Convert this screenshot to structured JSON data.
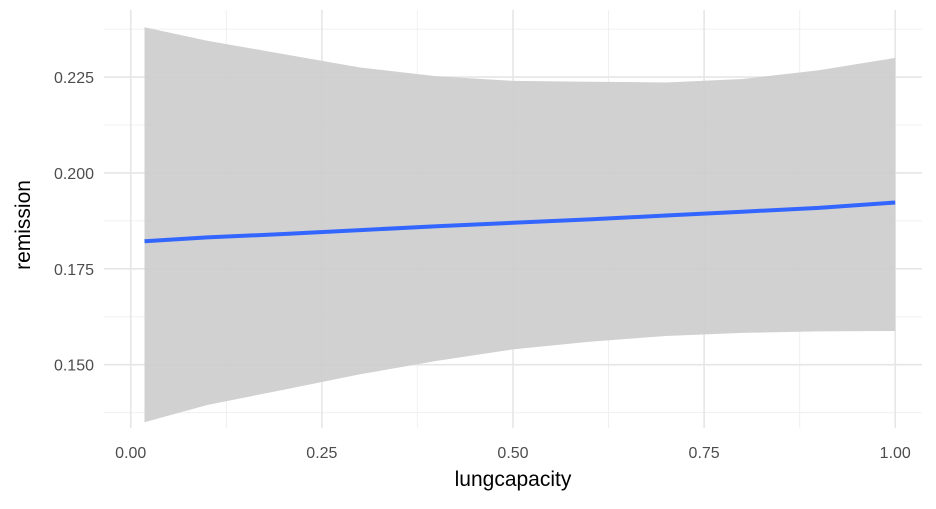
{
  "chart_data": {
    "type": "line",
    "xlabel": "lungcapacity",
    "ylabel": "remission",
    "xlim": [
      -0.035,
      1.035
    ],
    "ylim": [
      0.1335,
      0.2425
    ],
    "x_ticks": [
      0.0,
      0.25,
      0.5,
      0.75,
      1.0
    ],
    "x_tick_labels": [
      "0.00",
      "0.25",
      "0.50",
      "0.75",
      "1.00"
    ],
    "y_ticks": [
      0.15,
      0.175,
      0.2,
      0.225
    ],
    "y_tick_labels": [
      "0.150",
      "0.175",
      "0.200",
      "0.225"
    ],
    "grid": true,
    "legend": "none",
    "colors": {
      "line": "#3366ff",
      "ribbon": "#cccccc",
      "grid": "#ebebeb"
    },
    "series": [
      {
        "x": [
          0.018,
          0.1,
          0.2,
          0.3,
          0.4,
          0.5,
          0.6,
          0.7,
          0.8,
          0.9,
          1.0
        ],
        "y": [
          0.1822,
          0.1832,
          0.1841,
          0.1851,
          0.1861,
          0.187,
          0.1879,
          0.1889,
          0.1899,
          0.1909,
          0.1923
        ],
        "ymin": [
          0.135,
          0.1395,
          0.1435,
          0.1475,
          0.151,
          0.154,
          0.156,
          0.1575,
          0.1583,
          0.1587,
          0.1588
        ],
        "ymax": [
          0.238,
          0.2345,
          0.231,
          0.2275,
          0.2252,
          0.224,
          0.2238,
          0.2236,
          0.2245,
          0.2268,
          0.23
        ]
      }
    ]
  }
}
